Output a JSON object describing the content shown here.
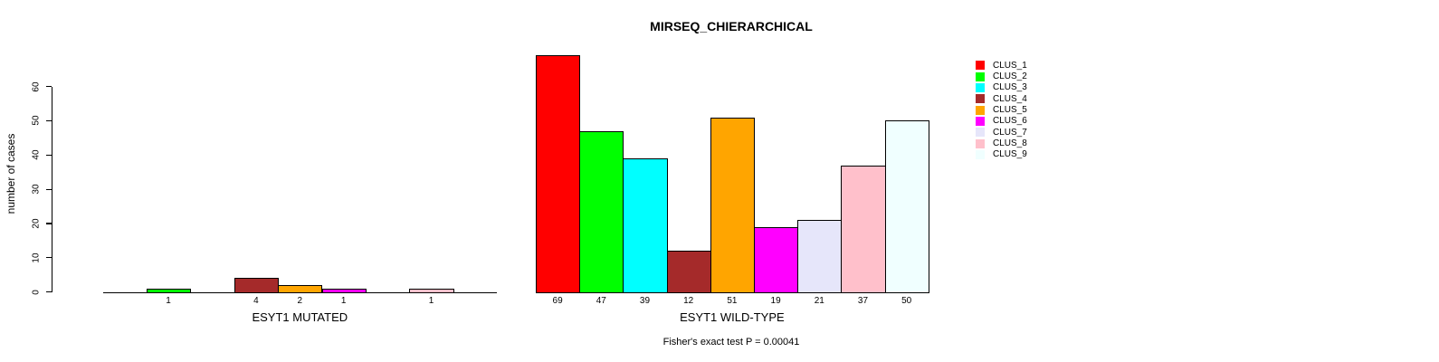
{
  "chart_data": {
    "type": "bar",
    "title": "MIRSEQ_CHIERARCHICAL",
    "ylabel": "number of cases",
    "xlabel": "",
    "ylim": [
      0,
      60
    ],
    "yticks": [
      0,
      10,
      20,
      30,
      40,
      50,
      60
    ],
    "grid": false,
    "legend_position": "right",
    "bar_border_color": "#000000",
    "clusters": [
      {
        "name": "CLUS_1",
        "color": "#FF0000"
      },
      {
        "name": "CLUS_2",
        "color": "#00FF00"
      },
      {
        "name": "CLUS_3",
        "color": "#00FFFF"
      },
      {
        "name": "CLUS_4",
        "color": "#A52A2A"
      },
      {
        "name": "CLUS_5",
        "color": "#FFA500"
      },
      {
        "name": "CLUS_6",
        "color": "#FF00FF"
      },
      {
        "name": "CLUS_7",
        "color": "#E6E6FA"
      },
      {
        "name": "CLUS_8",
        "color": "#FFC0CB"
      },
      {
        "name": "CLUS_9",
        "color": "#F0FFFF"
      }
    ],
    "groups": [
      {
        "key": "mutated",
        "label": "ESYT1 MUTATED",
        "values": [
          0,
          1,
          0,
          4,
          2,
          1,
          0,
          1,
          0
        ]
      },
      {
        "key": "wild-type",
        "label": "ESYT1 WILD-TYPE",
        "values": [
          69,
          47,
          39,
          12,
          51,
          19,
          21,
          37,
          50
        ]
      }
    ],
    "value_labels_nonzero_only": true,
    "annotation": "Fisher's exact test P = 0.00041"
  }
}
